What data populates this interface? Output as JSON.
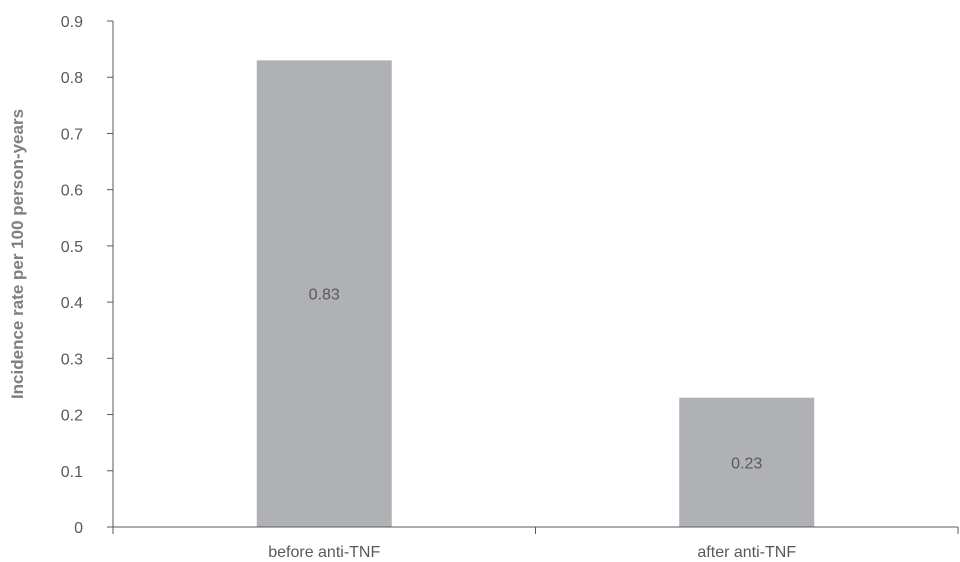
{
  "chart_data": {
    "type": "bar",
    "title": "",
    "xlabel": "",
    "ylabel": "Incidence rate per 100 person-years",
    "categories": [
      "before anti-TNF",
      "after anti-TNF"
    ],
    "values": [
      0.83,
      0.23
    ],
    "data_labels": [
      "0.83",
      "0.23"
    ],
    "yticks": [
      0,
      0.1,
      0.2,
      0.3,
      0.4,
      0.5,
      0.6,
      0.7,
      0.8,
      0.9
    ],
    "ytick_labels": [
      "0",
      "0.1",
      "0.2",
      "0.3",
      "0.4",
      "0.5",
      "0.6",
      "0.7",
      "0.8",
      "0.9"
    ],
    "ylim": [
      0,
      0.9
    ],
    "grid": false,
    "legend": "none",
    "colors": {
      "bar": "#b0b1b4",
      "axis": "#595959",
      "tick_text": "#595959",
      "axis_title": "#7f7f7f"
    }
  }
}
